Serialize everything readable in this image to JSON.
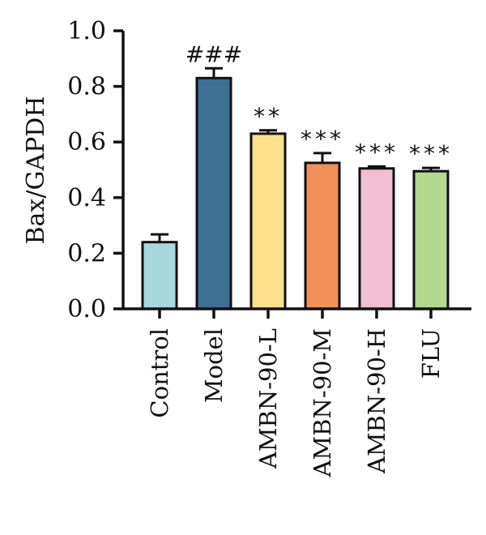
{
  "chart_data": {
    "type": "bar",
    "ylabel": "Bax/GAPDH",
    "ylim": [
      0,
      1.0
    ],
    "yticks": [
      "0.0",
      "0.2",
      "0.4",
      "0.6",
      "0.8",
      "1.0"
    ],
    "grid": false,
    "categories": [
      "Control",
      "Model",
      "AMBN-90-L",
      "AMBN-90-M",
      "AMBN-90-H",
      "FLU"
    ],
    "values": [
      0.24,
      0.83,
      0.63,
      0.525,
      0.505,
      0.495
    ],
    "errors": [
      0.028,
      0.035,
      0.012,
      0.035,
      0.007,
      0.012
    ],
    "annotations": [
      "",
      "###",
      "**",
      "***",
      "***",
      "***"
    ],
    "colors": [
      "#a8d8dc",
      "#3e6f94",
      "#fde08d",
      "#f2905c",
      "#f0bfd2",
      "#b3d88e"
    ]
  }
}
